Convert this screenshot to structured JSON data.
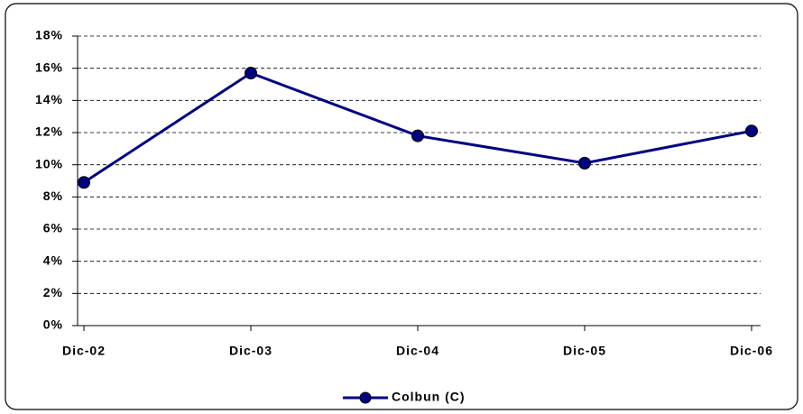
{
  "chart_data": {
    "type": "line",
    "categories": [
      "Dic-02",
      "Dic-03",
      "Dic-04",
      "Dic-05",
      "Dic-06"
    ],
    "series": [
      {
        "name": "Colbun (C)",
        "color": "#000080",
        "values": [
          8.9,
          15.7,
          11.8,
          10.1,
          12.1
        ]
      }
    ],
    "ylim": [
      0,
      18
    ],
    "yticks": [
      {
        "value": 0,
        "label": "0%"
      },
      {
        "value": 2,
        "label": "2%"
      },
      {
        "value": 4,
        "label": "4%"
      },
      {
        "value": 6,
        "label": "6%"
      },
      {
        "value": 8,
        "label": "8%"
      },
      {
        "value": 10,
        "label": "10%"
      },
      {
        "value": 12,
        "label": "12%"
      },
      {
        "value": 14,
        "label": "14%"
      },
      {
        "value": 16,
        "label": "16%"
      },
      {
        "value": 18,
        "label": "18%"
      }
    ],
    "grid": true,
    "legend": "bottom"
  }
}
